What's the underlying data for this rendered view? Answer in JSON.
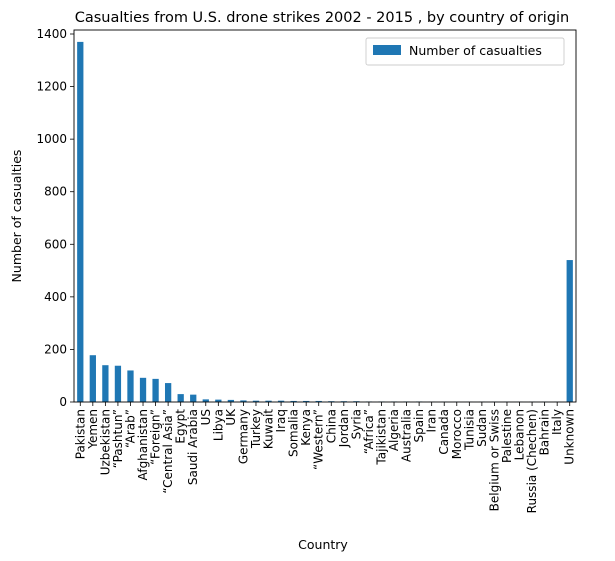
{
  "chart_data": {
    "type": "bar",
    "title": "Casualties from U.S. drone strikes 2002 - 2015 , by country of origin",
    "xlabel": "Country",
    "ylabel": "Number of casualties",
    "ylim": [
      0,
      1400
    ],
    "yticks": [
      0,
      200,
      400,
      600,
      800,
      1000,
      1200,
      1400
    ],
    "grid": false,
    "legend_position": "top-right",
    "color": "#1f77b4",
    "categories": [
      "Pakistan",
      "Yemen",
      "Uzbekistan",
      "“Pashtun”",
      "“Arab”",
      "Afghanistan",
      "“Foreign”",
      "“Central Asia”",
      "Egypt",
      "Saudi Arabia",
      "US",
      "Libya",
      "UK",
      "Germany",
      "Turkey",
      "Kuwait",
      "Iraq",
      "Somalia",
      "Kenya",
      "“Western”",
      "China",
      "Jordan",
      "Syria",
      "“Africa”",
      "Tajikistan",
      "Algeria",
      "Australia",
      "Spain",
      "Iran",
      "Canada",
      "Morocco",
      "Tunisia",
      "Sudan",
      "Belgium or Swiss",
      "Palestine",
      "Lebanon",
      "Russia (Chechen)",
      "Bahrain",
      "Italy",
      "Unknown"
    ],
    "series": [
      {
        "name": "Number of casualties",
        "values": [
          1370,
          178,
          140,
          138,
          120,
          92,
          88,
          72,
          30,
          28,
          10,
          9,
          8,
          6,
          5,
          5,
          5,
          4,
          4,
          4,
          3,
          3,
          3,
          2,
          2,
          2,
          2,
          2,
          1,
          1,
          1,
          1,
          1,
          1,
          1,
          1,
          1,
          1,
          1,
          540
        ]
      }
    ]
  }
}
